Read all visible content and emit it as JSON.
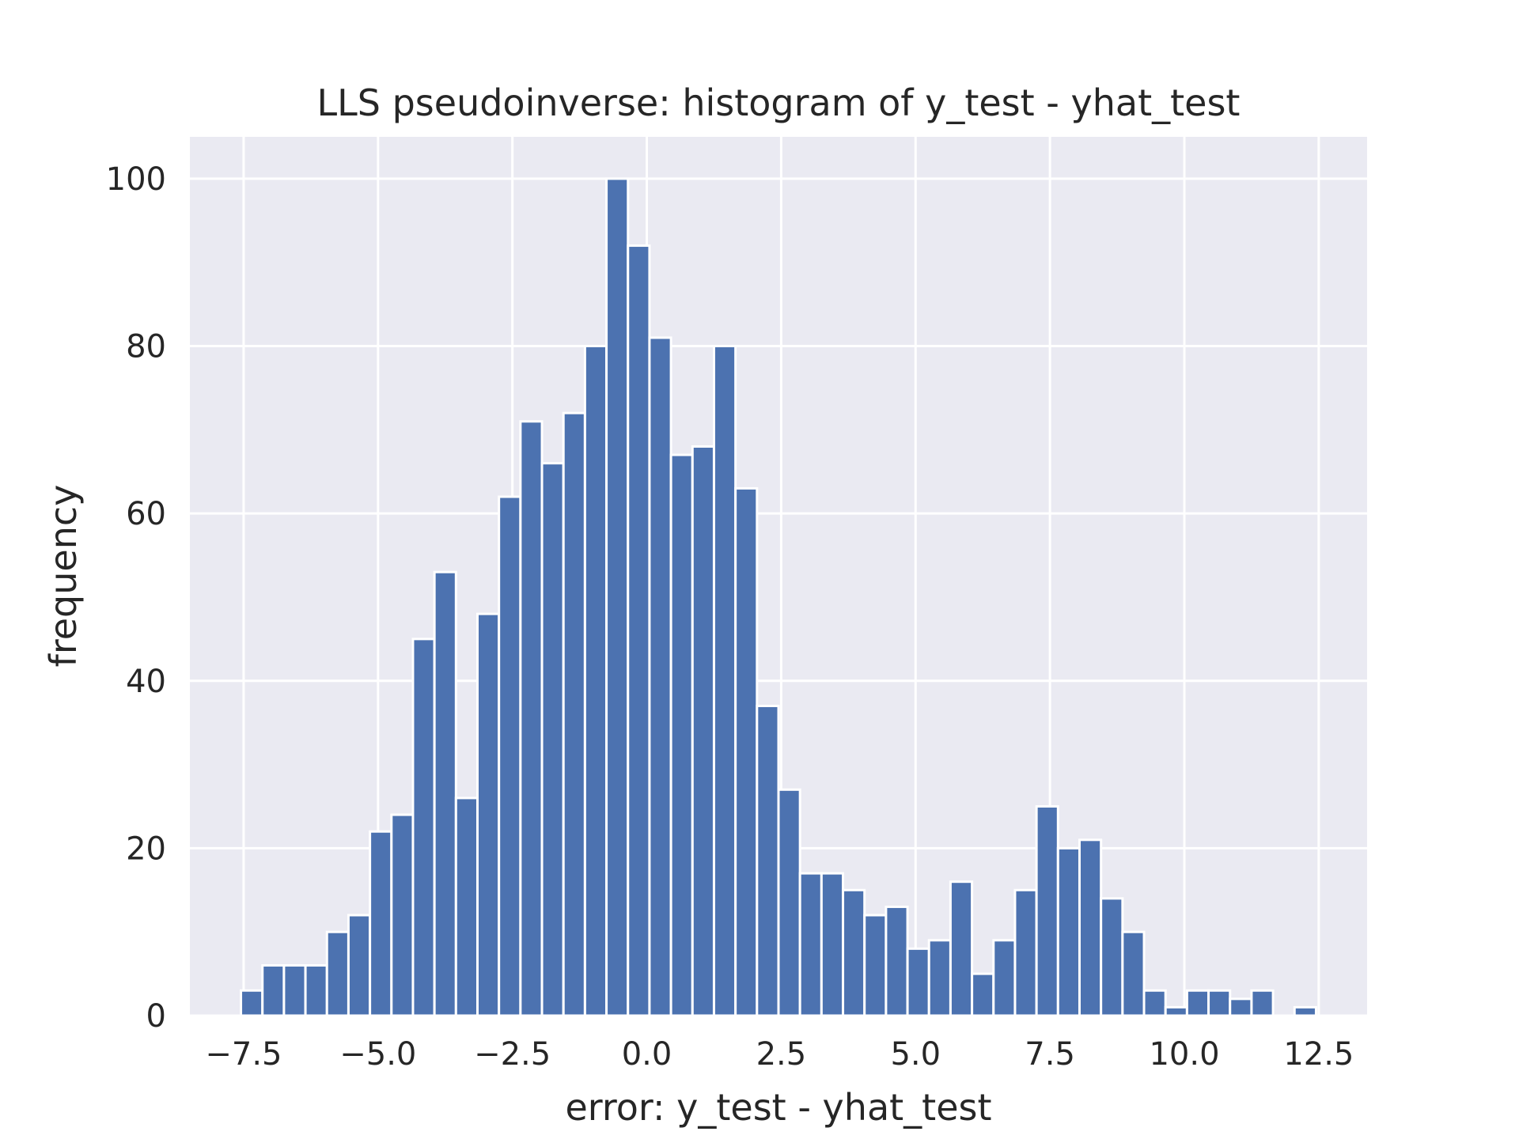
{
  "chart_data": {
    "type": "bar",
    "title": "LLS pseudoinverse: histogram of y_test - yhat_test",
    "xlabel": "error: y_test - yhat_test",
    "ylabel": "frequency",
    "xlim": [
      -8.5,
      13.4
    ],
    "ylim": [
      0,
      105
    ],
    "xticks": [
      -7.5,
      -5.0,
      -2.5,
      0.0,
      2.5,
      5.0,
      7.5,
      10.0,
      12.5
    ],
    "xtick_labels": [
      "−7.5",
      "−5.0",
      "−2.5",
      "0.0",
      "2.5",
      "5.0",
      "7.5",
      "10.0",
      "12.5"
    ],
    "yticks": [
      0,
      20,
      40,
      60,
      80,
      100
    ],
    "ytick_labels": [
      "0",
      "20",
      "40",
      "60",
      "80",
      "100"
    ],
    "grid": true,
    "background": "#eaeaf2",
    "bar_color": "#4c72b0",
    "bin_start": -7.55,
    "bin_width": 0.4,
    "values": [
      3,
      6,
      6,
      6,
      10,
      12,
      22,
      24,
      45,
      53,
      26,
      48,
      62,
      71,
      66,
      72,
      80,
      100,
      92,
      81,
      67,
      68,
      80,
      63,
      37,
      27,
      17,
      17,
      15,
      12,
      13,
      8,
      9,
      16,
      5,
      9,
      15,
      25,
      20,
      21,
      14,
      10,
      3,
      1,
      3,
      3,
      2,
      3,
      0,
      1
    ]
  }
}
